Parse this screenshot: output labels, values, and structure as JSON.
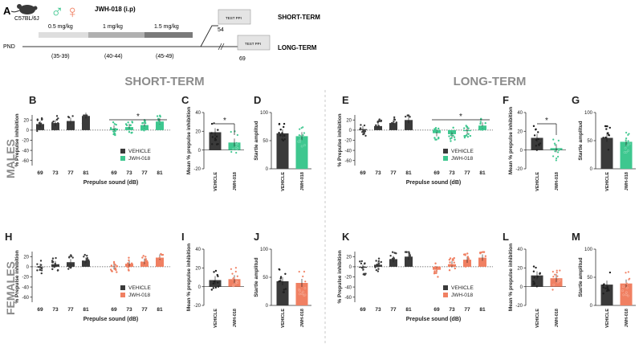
{
  "colors": {
    "vehicle": "#3a3a3a",
    "males": "#3ec78f",
    "females": "#f08062",
    "timeline_light": "#dedede",
    "timeline_mid": "#b0b0b0",
    "timeline_dark": "#7a7a7a",
    "grey_text": "#8c8c8c"
  },
  "schematic": {
    "panel_label": "A",
    "strain": "C57BL/6J",
    "male_symbol": "♂",
    "female_symbol": "♀",
    "treatment": "JWH-018 (i.p)",
    "doses": [
      "0.5 mg/kg",
      "1 mg/kg",
      "1.5 mg/kg"
    ],
    "pnd_ranges": [
      "(35-39)",
      "(40-44)",
      "(45-49)"
    ],
    "pnd_label": "PND",
    "test_label": "TEST PPI",
    "short_term_day": "54",
    "long_term_day": "69",
    "short_term_label": "SHORT-TERM",
    "long_term_label": "LONG-TERM"
  },
  "section_titles": {
    "short": "SHORT-TERM",
    "long": "LONG-TERM"
  },
  "row_labels": {
    "males": "MALES",
    "females": "FEMALES"
  },
  "ppi_axis": {
    "ylabel": "% Prepulse inhibition",
    "xlabel": "Prepulse sound (dB)",
    "ylim": [
      -70,
      30
    ],
    "yticks": [
      "20",
      "0",
      "-20",
      "-40",
      "-60"
    ]
  },
  "mean_axis": {
    "ylabel": "Mean % prepulse inhibition",
    "ylim": [
      -20,
      40
    ],
    "yticks": [
      "40",
      "20",
      "0",
      "-20"
    ]
  },
  "startle_axis": {
    "ylabel": "Startle amplitud",
    "ylim": [
      0,
      100
    ],
    "yticks": [
      "100",
      "50",
      "0"
    ]
  },
  "groups": [
    "VEHICLE",
    "JWH-018"
  ],
  "legend": {
    "vehicle": "VEHICLE",
    "jwh": "JWH-018"
  },
  "chart_data": [
    {
      "panel": "B",
      "type": "bar",
      "sex": "males",
      "term": "short",
      "categories": [
        "69",
        "73",
        "77",
        "81"
      ],
      "series": [
        {
          "name": "VEHICLE",
          "values": [
            12,
            14,
            18,
            28
          ]
        },
        {
          "name": "JWH-018",
          "values": [
            3,
            6,
            10,
            17
          ]
        }
      ],
      "significance": "*"
    },
    {
      "panel": "C",
      "type": "bar",
      "sex": "males",
      "term": "short",
      "categories": [
        "VEHICLE",
        "JWH-018"
      ],
      "values": [
        19,
        8
      ],
      "significance": "*"
    },
    {
      "panel": "D",
      "type": "bar",
      "sex": "males",
      "term": "short",
      "categories": [
        "VEHICLE",
        "JWH-018"
      ],
      "values": [
        63,
        58
      ]
    },
    {
      "panel": "E",
      "type": "bar",
      "sex": "males",
      "term": "long",
      "categories": [
        "69",
        "73",
        "77",
        "81"
      ],
      "series": [
        {
          "name": "VEHICLE",
          "values": [
            2,
            8,
            14,
            20
          ]
        },
        {
          "name": "JWH-018",
          "values": [
            -6,
            -8,
            -2,
            9
          ]
        }
      ],
      "significance": "*"
    },
    {
      "panel": "F",
      "type": "bar",
      "sex": "males",
      "term": "long",
      "categories": [
        "VEHICLE",
        "JWH-018"
      ],
      "values": [
        13,
        2
      ],
      "significance": "*"
    },
    {
      "panel": "G",
      "type": "bar",
      "sex": "males",
      "term": "long",
      "categories": [
        "VEHICLE",
        "JWH-018"
      ],
      "values": [
        55,
        48
      ]
    },
    {
      "panel": "H",
      "type": "bar",
      "sex": "females",
      "term": "short",
      "categories": [
        "69",
        "73",
        "77",
        "81"
      ],
      "series": [
        {
          "name": "VEHICLE",
          "values": [
            0,
            5,
            9,
            12
          ]
        },
        {
          "name": "JWH-018",
          "values": [
            1,
            6,
            10,
            18
          ]
        }
      ]
    },
    {
      "panel": "I",
      "type": "bar",
      "sex": "females",
      "term": "short",
      "categories": [
        "VEHICLE",
        "JWH-018"
      ],
      "values": [
        7,
        8
      ]
    },
    {
      "panel": "J",
      "type": "bar",
      "sex": "females",
      "term": "short",
      "categories": [
        "VEHICLE",
        "JWH-018"
      ],
      "values": [
        43,
        40
      ]
    },
    {
      "panel": "K",
      "type": "bar",
      "sex": "females",
      "term": "long",
      "categories": [
        "69",
        "73",
        "77",
        "81"
      ],
      "series": [
        {
          "name": "VEHICLE",
          "values": [
            -2,
            4,
            15,
            20
          ]
        },
        {
          "name": "JWH-018",
          "values": [
            -6,
            5,
            14,
            18
          ]
        }
      ]
    },
    {
      "panel": "L",
      "type": "bar",
      "sex": "females",
      "term": "long",
      "categories": [
        "VEHICLE",
        "JWH-018"
      ],
      "values": [
        12,
        9
      ]
    },
    {
      "panel": "M",
      "type": "bar",
      "sex": "females",
      "term": "long",
      "categories": [
        "VEHICLE",
        "JWH-018"
      ],
      "values": [
        37,
        39
      ]
    }
  ]
}
